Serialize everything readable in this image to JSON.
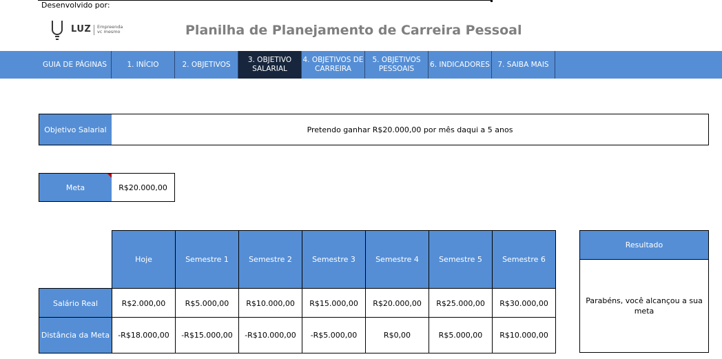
{
  "header": {
    "developed_by": "Desenvolvido por:",
    "logo": {
      "name": "LUZ",
      "tagline_line1": "Empreenda",
      "tagline_line2": "vc mesmo"
    },
    "title": "Planilha de Planejamento de Carreira Pessoal"
  },
  "nav": {
    "items": [
      {
        "line1": "GUIA DE PÁGINAS",
        "line2": ""
      },
      {
        "line1": "1. INÍCIO",
        "line2": ""
      },
      {
        "line1": "2. OBJETIVOS",
        "line2": ""
      },
      {
        "line1": "3. OBJETIVO",
        "line2": "SALARIAL"
      },
      {
        "line1": "4. OBJETIVOS DE",
        "line2": "CARREIRA"
      },
      {
        "line1": "5. OBJETIVOS",
        "line2": "PESSOAIS"
      },
      {
        "line1": "6. INDICADORES",
        "line2": ""
      },
      {
        "line1": "7. SAIBA MAIS",
        "line2": ""
      }
    ],
    "active_index": 3
  },
  "objective": {
    "label": "Objetivo Salarial",
    "value": "Pretendo ganhar R$20.000,00 por mês daqui a 5 anos"
  },
  "goal": {
    "label": "Meta",
    "value": "R$20.000,00"
  },
  "table": {
    "headers": [
      "Hoje",
      "Semestre 1",
      "Semestre 2",
      "Semestre 3",
      "Semestre 4",
      "Semestre 5",
      "Semestre 6"
    ],
    "rows": [
      {
        "label": "Salário Real",
        "values": [
          "R$2.000,00",
          "R$5.000,00",
          "R$10.000,00",
          "R$15.000,00",
          "R$20.000,00",
          "R$25.000,00",
          "R$30.000,00"
        ]
      },
      {
        "label": "Distância da Meta",
        "values": [
          "-R$18.000,00",
          "-R$15.000,00",
          "-R$10.000,00",
          "-R$5.000,00",
          "R$0,00",
          "R$5.000,00",
          "R$10.000,00"
        ]
      }
    ]
  },
  "result": {
    "label": "Resultado",
    "value": "Parabéns, você alcançou a sua meta"
  },
  "colors": {
    "header_blue": "#558ed5",
    "active_tab": "#17263d",
    "title_gray": "#7f7f7f",
    "comment_marker": "#c00000"
  }
}
